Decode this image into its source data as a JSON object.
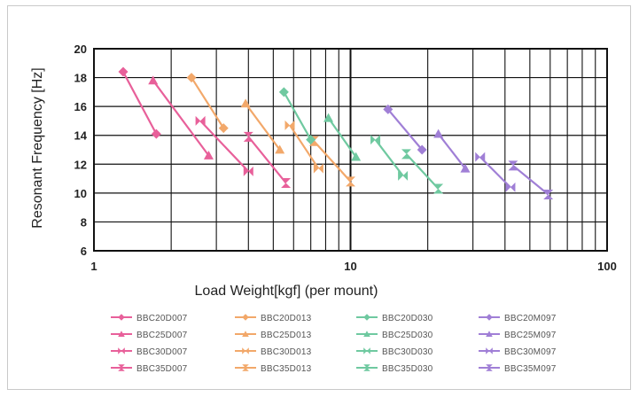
{
  "chart_data": {
    "type": "line",
    "title": "",
    "xlabel": "Load Weight[kgf] (per mount)",
    "ylabel": "Resonant Frequency [Hz]",
    "xscale": "log",
    "xlim": [
      1,
      100
    ],
    "ylim": [
      6,
      20
    ],
    "xticks": [
      1,
      10,
      100
    ],
    "xtick_labels": [
      "1",
      "10",
      "100"
    ],
    "yticks": [
      6,
      8,
      10,
      12,
      14,
      16,
      18,
      20
    ],
    "ytick_labels": [
      "6",
      "8",
      "10",
      "12",
      "14",
      "16",
      "18",
      "20"
    ],
    "grid": true,
    "legend_position": "bottom",
    "series": [
      {
        "name": "BBC20D007",
        "color": "#e8609a",
        "marker": "diamond",
        "x": [
          1.3,
          1.75
        ],
        "y": [
          18.4,
          14.1
        ]
      },
      {
        "name": "BBC25D007",
        "color": "#e8609a",
        "marker": "triangle",
        "x": [
          1.7,
          2.8
        ],
        "y": [
          17.8,
          12.6
        ]
      },
      {
        "name": "BBC30D007",
        "color": "#e8609a",
        "marker": "bowtie",
        "x": [
          2.6,
          4.0
        ],
        "y": [
          15.0,
          11.5
        ]
      },
      {
        "name": "BBC35D007",
        "color": "#e8609a",
        "marker": "hourglass",
        "x": [
          4.0,
          5.6
        ],
        "y": [
          13.9,
          10.7
        ]
      },
      {
        "name": "BBC20D013",
        "color": "#f2a86a",
        "marker": "diamond",
        "x": [
          2.4,
          3.2
        ],
        "y": [
          18.0,
          14.5
        ]
      },
      {
        "name": "BBC25D013",
        "color": "#f2a86a",
        "marker": "triangle",
        "x": [
          3.9,
          5.3
        ],
        "y": [
          16.2,
          13.0
        ]
      },
      {
        "name": "BBC30D013",
        "color": "#f2a86a",
        "marker": "bowtie",
        "x": [
          5.8,
          7.5
        ],
        "y": [
          14.7,
          11.7
        ]
      },
      {
        "name": "BBC35D013",
        "color": "#f2a86a",
        "marker": "hourglass",
        "x": [
          7.2,
          10.0
        ],
        "y": [
          13.6,
          10.8
        ]
      },
      {
        "name": "BBC20D030",
        "color": "#6fc9a0",
        "marker": "diamond",
        "x": [
          5.5,
          7.0
        ],
        "y": [
          17.0,
          13.7
        ]
      },
      {
        "name": "BBC25D030",
        "color": "#6fc9a0",
        "marker": "triangle",
        "x": [
          8.2,
          10.5
        ],
        "y": [
          15.2,
          12.5
        ]
      },
      {
        "name": "BBC30D030",
        "color": "#6fc9a0",
        "marker": "bowtie",
        "x": [
          12.5,
          16.0
        ],
        "y": [
          13.7,
          11.2
        ]
      },
      {
        "name": "BBC35D030",
        "color": "#6fc9a0",
        "marker": "hourglass",
        "x": [
          16.5,
          22.0
        ],
        "y": [
          12.7,
          10.3
        ]
      },
      {
        "name": "BBC20M097",
        "color": "#a07fd6",
        "marker": "diamond",
        "x": [
          14.0,
          19.0
        ],
        "y": [
          15.8,
          13.0
        ]
      },
      {
        "name": "BBC25M097",
        "color": "#a07fd6",
        "marker": "triangle",
        "x": [
          22.0,
          28.0
        ],
        "y": [
          14.1,
          11.7
        ]
      },
      {
        "name": "BBC30M097",
        "color": "#a07fd6",
        "marker": "bowtie",
        "x": [
          32.0,
          42.0
        ],
        "y": [
          12.5,
          10.4
        ]
      },
      {
        "name": "BBC35M097",
        "color": "#a07fd6",
        "marker": "hourglass",
        "x": [
          43.0,
          59.0
        ],
        "y": [
          11.9,
          9.9
        ]
      }
    ]
  }
}
